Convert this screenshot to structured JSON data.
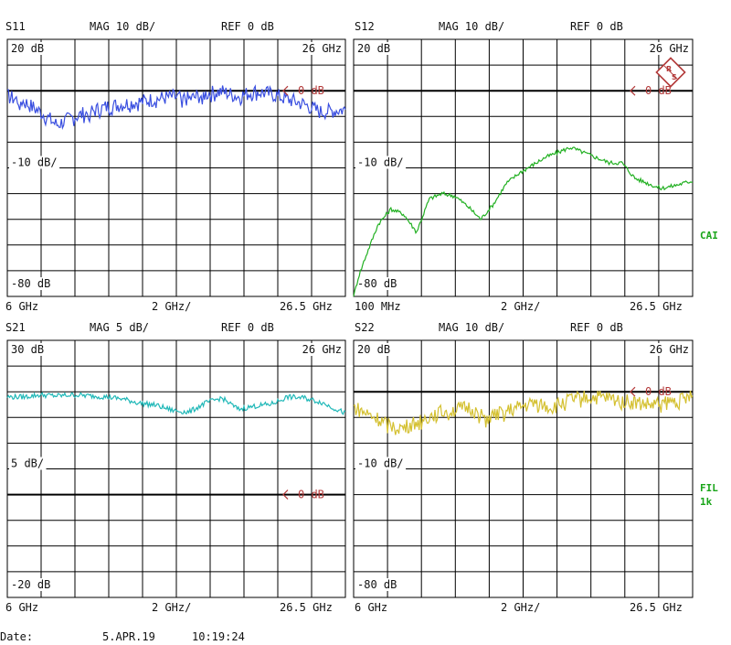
{
  "instrument": {
    "side_labels": {
      "cal": "CAI",
      "filter": "FIL",
      "filter_bw": "1k"
    },
    "footer": {
      "date_label": "Date:",
      "date": "5.APR.19",
      "time": "10:19:24"
    },
    "colors": {
      "s11": "#3a4fe0",
      "s12": "#22b022",
      "s21": "#20b8b8",
      "s22": "#d4c030",
      "marker": "#b33a3a",
      "side": "#1aa51a"
    }
  },
  "chart_data": [
    {
      "type": "line",
      "param": "S11",
      "format": "MAG 10 dB/",
      "ref": "REF 0 dB",
      "top_label": "20 dB",
      "mid_label": "-10 dB/",
      "bottom_label": "-80 dB",
      "top_right": "26 GHz",
      "ref_marker": "0 dB",
      "x_start": "6 GHz",
      "x_div": "2 GHz/",
      "x_stop": "26.5 GHz",
      "ylim": [
        -80,
        20
      ],
      "ref_value": 0,
      "x": [
        6,
        7,
        8,
        9,
        10,
        11,
        12,
        13,
        14,
        15,
        16,
        17,
        18,
        19,
        20,
        21,
        22,
        23,
        24,
        25,
        26.5
      ],
      "series": [
        {
          "values": [
            -2,
            -4,
            -8,
            -13,
            -10,
            -8,
            -6,
            -5,
            -4,
            -3,
            -2,
            -3,
            -1,
            0,
            -2,
            0,
            -1,
            -3,
            -5,
            -8,
            -7
          ]
        }
      ],
      "noise": 3
    },
    {
      "type": "line",
      "param": "S12",
      "format": "MAG 10 dB/",
      "ref": "REF 0 dB",
      "top_label": "20 dB",
      "mid_label": "-10 dB/",
      "bottom_label": "-80 dB",
      "top_right": "26 GHz",
      "ref_marker": "0 dB",
      "x_start": "100 MHz",
      "x_div": "2 GHz/",
      "x_stop": "26.5 GHz",
      "ylim": [
        -80,
        20
      ],
      "ref_value": 0,
      "x": [
        0.1,
        0.5,
        1,
        2,
        3,
        4,
        5,
        6,
        7,
        8,
        9,
        10,
        11,
        12,
        13,
        14,
        15,
        16,
        17,
        18,
        19,
        20,
        21,
        22,
        23,
        24,
        25,
        26.5
      ],
      "series": [
        {
          "values": [
            -80,
            -72,
            -65,
            -52,
            -46,
            -48,
            -55,
            -42,
            -40,
            -41,
            -45,
            -50,
            -44,
            -36,
            -32,
            -29,
            -26,
            -24,
            -22,
            -24,
            -26,
            -28,
            -28,
            -34,
            -36,
            -38,
            -37,
            -35
          ]
        }
      ],
      "noise": 0.8
    },
    {
      "type": "line",
      "param": "S21",
      "format": "MAG 5 dB/",
      "ref": "REF 0 dB",
      "top_label": "30 dB",
      "mid_label": "5 dB/",
      "bottom_label": "-20 dB",
      "top_right": "26 GHz",
      "ref_marker": "0 dB",
      "x_start": "6 GHz",
      "x_div": "2 GHz/",
      "x_stop": "26.5 GHz",
      "ylim": [
        -20,
        30
      ],
      "ref_value": 0,
      "x": [
        6,
        7,
        8,
        9,
        10,
        11,
        12,
        13,
        14,
        15,
        16,
        17,
        18,
        19,
        20,
        21,
        22,
        23,
        24,
        25,
        26.5
      ],
      "series": [
        {
          "values": [
            19,
            19,
            19.4,
            19.2,
            19.4,
            19.2,
            19,
            18.6,
            17.8,
            17.4,
            16.4,
            16,
            17.8,
            18.8,
            16.6,
            17.2,
            17.6,
            19,
            18.8,
            18,
            15.8
          ]
        }
      ],
      "noise": 0.5
    },
    {
      "type": "line",
      "param": "S22",
      "format": "MAG 10 dB/",
      "ref": "REF 0 dB",
      "top_label": "20 dB",
      "mid_label": "-10 dB/",
      "bottom_label": "-80 dB",
      "top_right": "26 GHz",
      "ref_marker": "0 dB",
      "x_start": "6 GHz",
      "x_div": "2 GHz/",
      "x_stop": "26.5 GHz",
      "ylim": [
        -80,
        20
      ],
      "ref_value": 0,
      "x": [
        6,
        7,
        8,
        9,
        10,
        11,
        12,
        13,
        14,
        15,
        16,
        17,
        18,
        19,
        20,
        21,
        22,
        23,
        24,
        25,
        26.5
      ],
      "series": [
        {
          "values": [
            -6,
            -9,
            -12,
            -14,
            -11,
            -8,
            -7,
            -6,
            -10,
            -8,
            -6,
            -4,
            -6,
            -3,
            -2,
            -2,
            -3,
            -4,
            -5,
            -4,
            -2
          ]
        }
      ],
      "noise": 3
    }
  ]
}
